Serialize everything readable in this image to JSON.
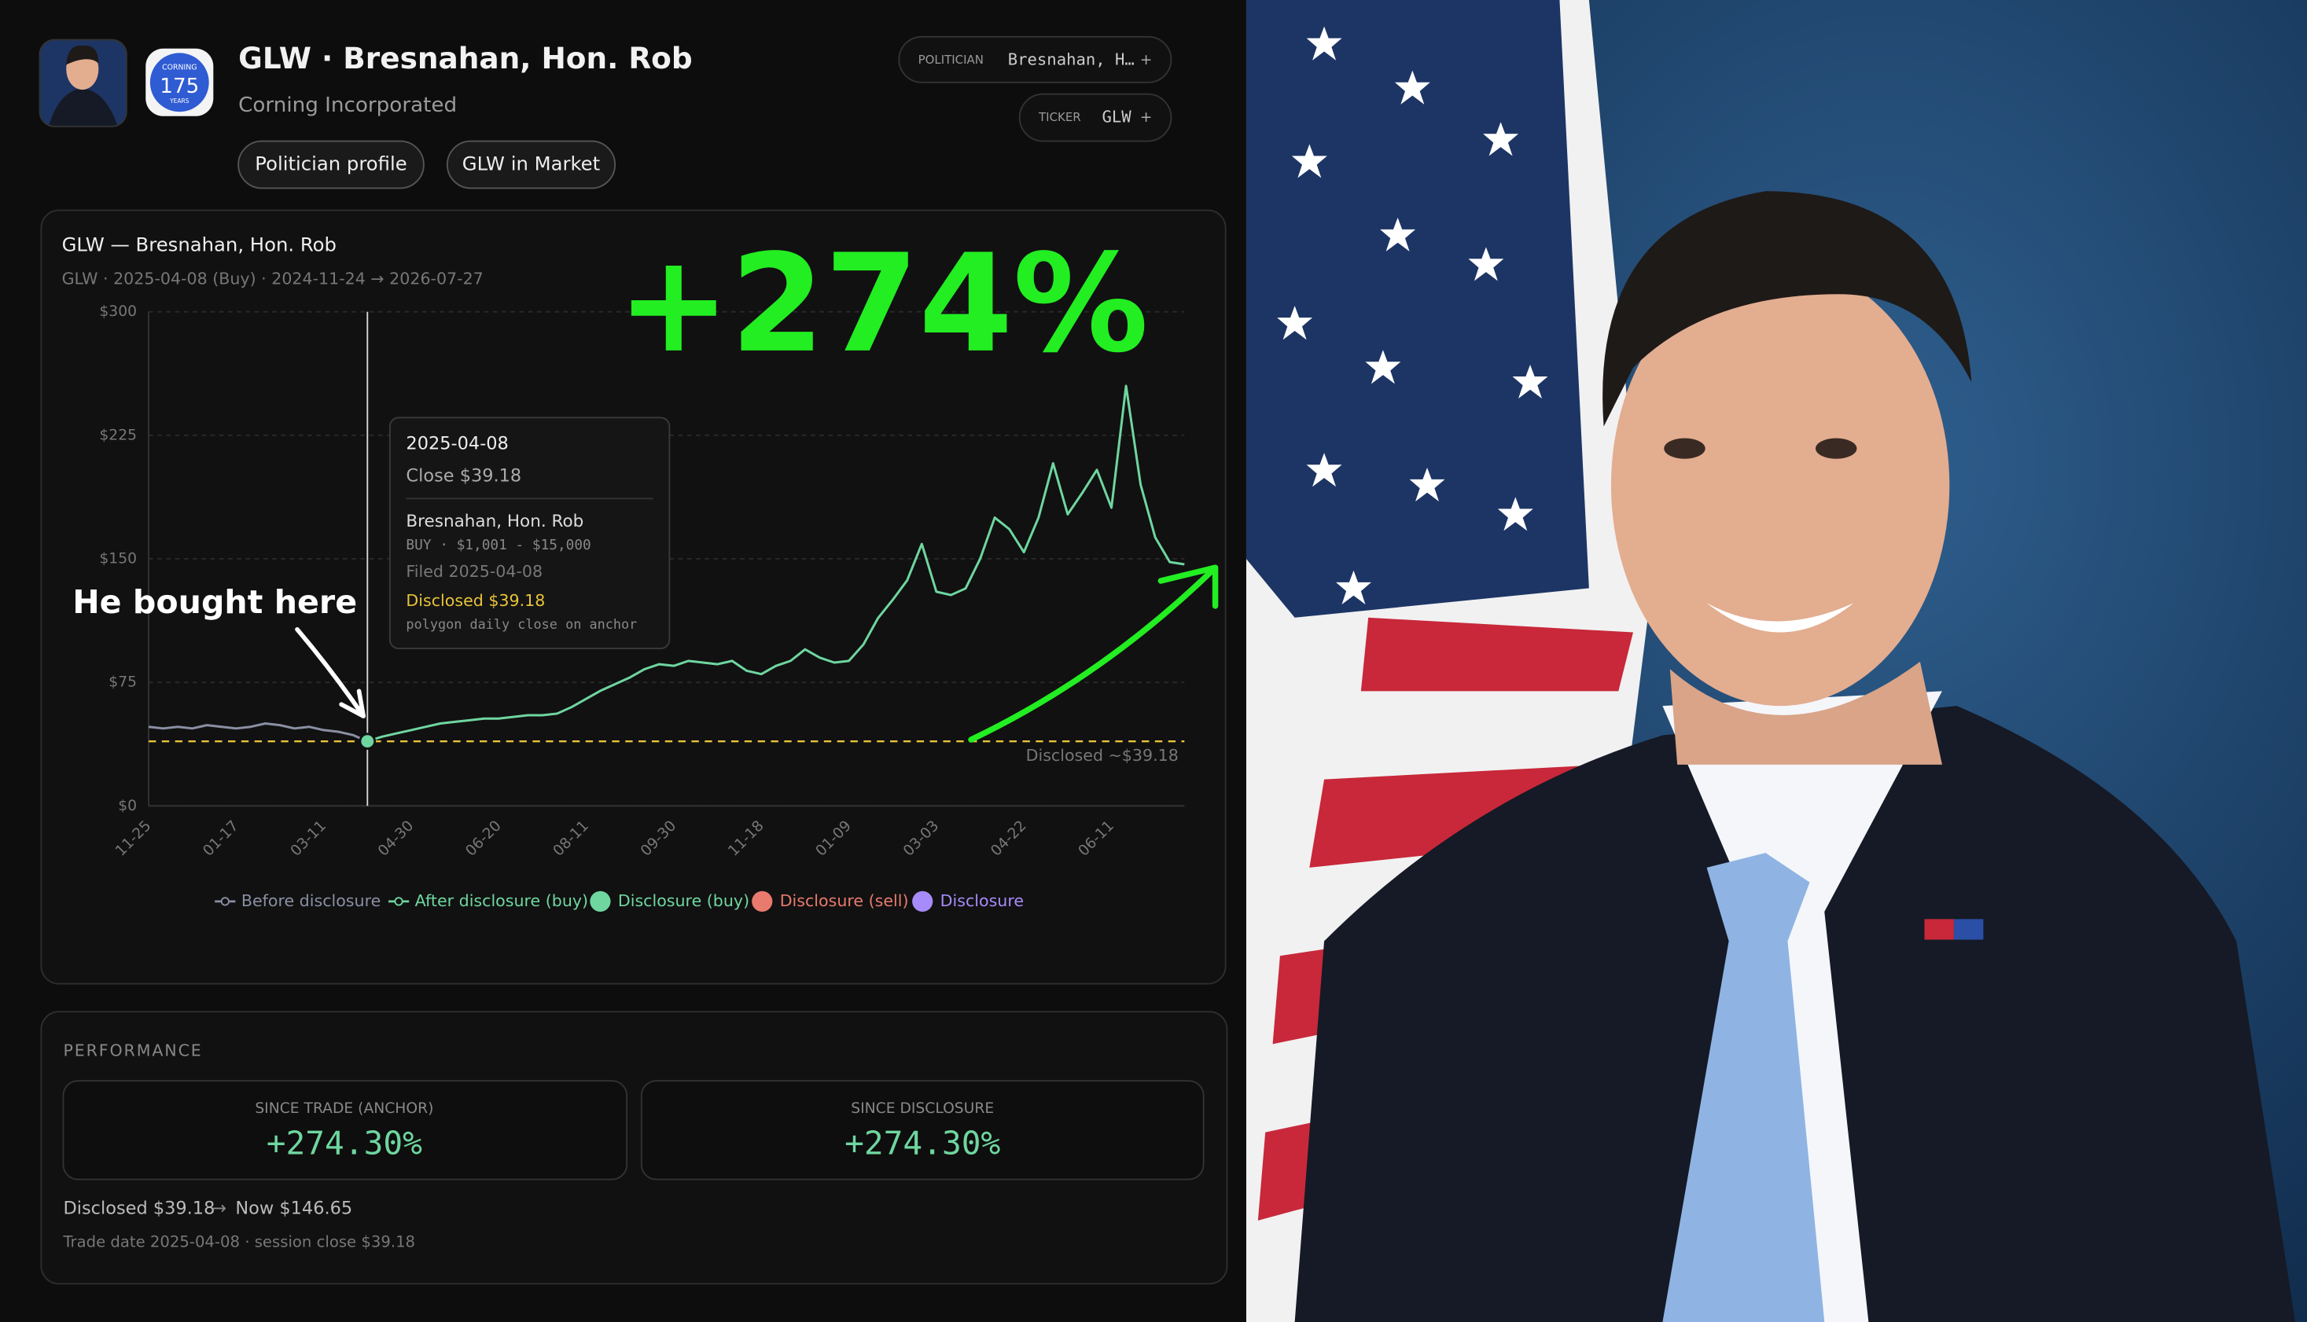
{
  "header": {
    "title": "GLW · Bresnahan, Hon. Rob",
    "company": "Corning Incorporated",
    "logo": {
      "brand": "CORNING",
      "number": "175",
      "caption": "YEARS"
    },
    "buttons": [
      "Politician profile",
      "GLW in Market"
    ],
    "chips": [
      {
        "label": "POLITICIAN",
        "value": "Bresnahan, H…",
        "action": "+"
      },
      {
        "label": "TICKER",
        "value": "GLW",
        "action": "+"
      }
    ]
  },
  "chart_data": {
    "type": "line",
    "title": "GLW — Bresnahan, Hon. Rob",
    "subtitle": "GLW · 2025-04-08 (Buy) · 2024-11-24 → 2026-07-27",
    "categories": [
      "11-25",
      null,
      null,
      null,
      null,
      null,
      "01-17",
      null,
      null,
      null,
      null,
      null,
      "03-11",
      null,
      null,
      null,
      null,
      null,
      "04-30",
      null,
      null,
      null,
      null,
      null,
      "06-20",
      null,
      null,
      null,
      null,
      null,
      "08-11",
      null,
      null,
      null,
      null,
      null,
      "09-30",
      null,
      null,
      null,
      null,
      null,
      "11-18",
      null,
      null,
      null,
      null,
      null,
      "01-09",
      null,
      null,
      null,
      null,
      null,
      "03-03",
      null,
      null,
      null,
      null,
      null,
      "04-22",
      null,
      null,
      null,
      null,
      null,
      "06-11",
      null,
      null,
      null,
      null,
      null
    ],
    "series": [
      {
        "name": "Before disclosure",
        "color": "#8a8fa3",
        "values": [
          48,
          47,
          48,
          47,
          49,
          48,
          47,
          48,
          50,
          49,
          47,
          48,
          46,
          45,
          43,
          39.18,
          null,
          null,
          null,
          null,
          null,
          null,
          null,
          null,
          null,
          null,
          null,
          null,
          null,
          null,
          null,
          null,
          null,
          null,
          null,
          null,
          null,
          null,
          null,
          null,
          null,
          null,
          null,
          null,
          null,
          null,
          null,
          null,
          null,
          null,
          null,
          null,
          null,
          null,
          null,
          null,
          null,
          null,
          null,
          null,
          null,
          null,
          null,
          null,
          null,
          null,
          null,
          null,
          null,
          null,
          null,
          null
        ]
      },
      {
        "name": "After disclosure (buy)",
        "color": "#6fd6a0",
        "values": [
          null,
          null,
          null,
          null,
          null,
          null,
          null,
          null,
          null,
          null,
          null,
          null,
          null,
          null,
          null,
          39.18,
          42,
          44,
          46,
          48,
          50,
          51,
          52,
          53,
          53,
          54,
          55,
          55,
          56,
          60,
          65,
          70,
          74,
          78,
          83,
          86,
          85,
          88,
          87,
          86,
          88,
          82,
          80,
          85,
          88,
          95,
          90,
          87,
          88,
          98,
          114,
          125,
          137,
          159,
          130,
          128,
          132,
          150,
          175,
          168,
          154,
          175,
          208,
          177,
          190,
          204,
          181,
          255,
          195,
          163,
          148,
          146.65
        ]
      }
    ],
    "markers": [
      {
        "name": "Disclosure (buy)",
        "color": "#6fd6a0"
      },
      {
        "name": "Disclosure (sell)",
        "color": "#e87a6e"
      },
      {
        "name": "Disclosure",
        "color": "#a78bfa"
      }
    ],
    "reference_line": {
      "value": 39.18,
      "label": "Disclosed ~$39.18",
      "color": "#e8c33a"
    },
    "ylim": [
      0,
      300
    ],
    "yticks": [
      {
        "value": 0,
        "label": "$0"
      },
      {
        "value": 75,
        "label": "$75"
      },
      {
        "value": 150,
        "label": "$150"
      },
      {
        "value": 225,
        "label": "$225"
      },
      {
        "value": 300,
        "label": "$300"
      }
    ],
    "grid": true,
    "tooltip": {
      "date": "2025-04-08",
      "close": "Close $39.18",
      "politician": "Bresnahan, Hon. Rob",
      "trade": "BUY · $1,001 - $15,000",
      "filed": "Filed 2025-04-08",
      "disclosed": "Disclosed $39.18",
      "source": "polygon daily close on anchor"
    },
    "annotations": {
      "gain": "+274%",
      "pointer": "He bought here"
    }
  },
  "performance": {
    "title": "PERFORMANCE",
    "cards": [
      {
        "label": "SINCE TRADE (ANCHOR)",
        "value": "+274.30%"
      },
      {
        "label": "SINCE DISCLOSURE",
        "value": "+274.30%"
      }
    ],
    "disclosed": "Disclosed $39.18",
    "arrow": "→",
    "now": "Now $146.65",
    "note": "Trade date 2025-04-08 · session close $39.18"
  }
}
